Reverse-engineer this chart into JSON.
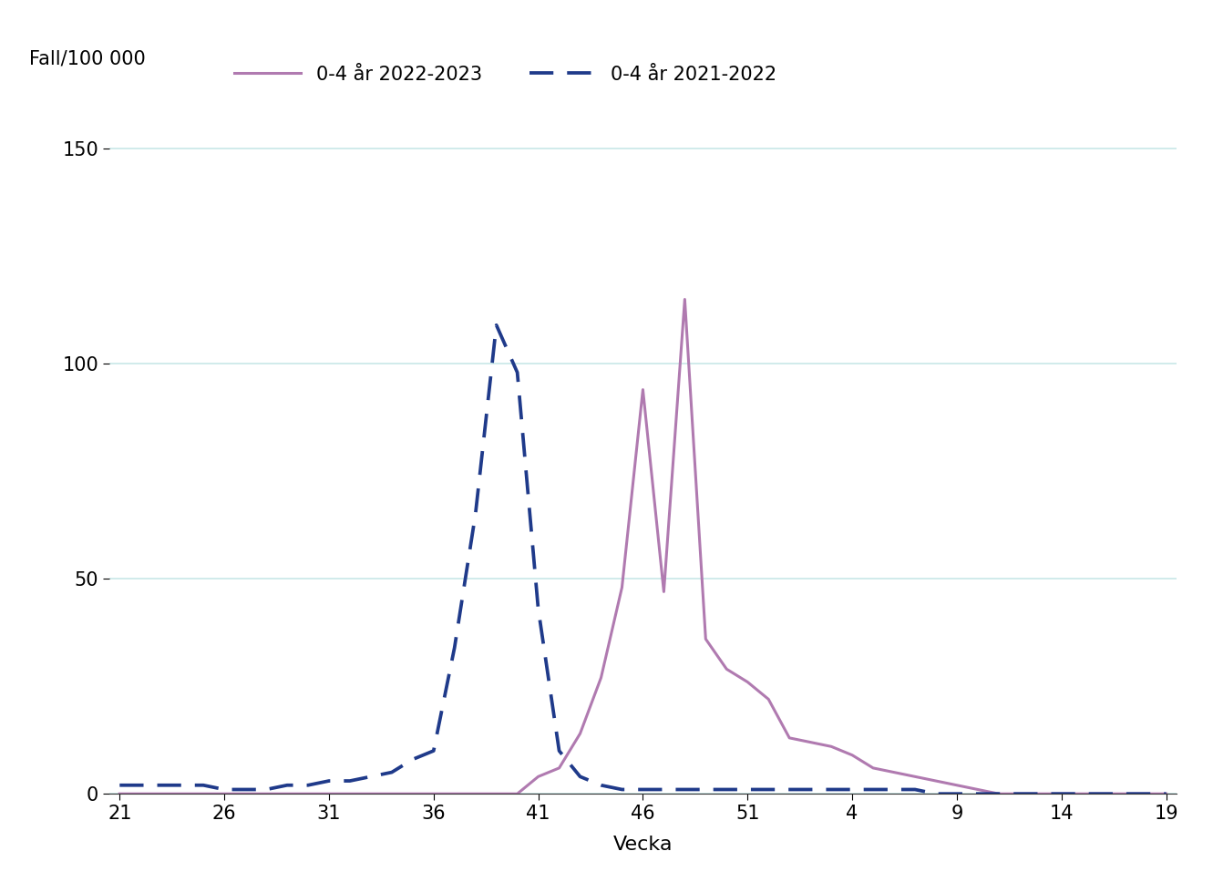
{
  "title_ylabel": "Fall/100 000",
  "xlabel": "Vecka",
  "xtick_labels": [
    "21",
    "26",
    "31",
    "36",
    "41",
    "46",
    "51",
    "4",
    "9",
    "14",
    "19"
  ],
  "xtick_positions": [
    0,
    5,
    10,
    15,
    20,
    25,
    30,
    35,
    40,
    45,
    50
  ],
  "ylim": [
    0,
    160
  ],
  "yticks": [
    0,
    50,
    100,
    150
  ],
  "legend_label_2022_2023": "0-4 år 2022-2023",
  "legend_label_2021_2022": "0-4 år 2021-2022",
  "color_2022_2023": "#b07ab0",
  "color_2021_2022": "#1f3a8a",
  "grid_color": "#c8e8e8",
  "background_color": "#ffffff",
  "font_size": 15,
  "line_width": 2.2,
  "y2223_x": [
    0,
    1,
    2,
    3,
    4,
    5,
    6,
    7,
    8,
    9,
    10,
    11,
    12,
    13,
    14,
    15,
    16,
    17,
    18,
    19,
    20,
    21,
    22,
    23,
    24,
    25,
    26,
    27,
    28,
    29,
    30,
    31,
    32,
    33,
    34,
    35,
    36,
    37,
    38,
    39,
    40,
    41,
    42,
    43,
    44,
    45,
    46,
    47,
    48,
    49,
    50
  ],
  "y2223_y": [
    0,
    0,
    0,
    0,
    0,
    0,
    0,
    0,
    0,
    0,
    0,
    0,
    0,
    0,
    0,
    0,
    0,
    0,
    0,
    0,
    4,
    6,
    14,
    27,
    48,
    94,
    47,
    115,
    36,
    29,
    26,
    22,
    13,
    12,
    11,
    9,
    6,
    5,
    4,
    3,
    2,
    1,
    0,
    0,
    0,
    0,
    0,
    0,
    0,
    0,
    0
  ],
  "y2122_x": [
    0,
    1,
    2,
    3,
    4,
    5,
    6,
    7,
    8,
    9,
    10,
    11,
    12,
    13,
    14,
    15,
    16,
    17,
    18,
    19,
    20,
    21,
    22,
    23,
    24,
    25,
    26,
    27,
    28,
    29,
    30,
    31,
    32,
    33,
    34,
    35,
    36,
    37,
    38,
    39,
    40,
    41,
    42,
    43,
    44,
    45,
    46,
    47,
    48,
    49,
    50
  ],
  "y2122_y": [
    2,
    2,
    2,
    2,
    2,
    1,
    1,
    1,
    2,
    2,
    3,
    3,
    4,
    5,
    8,
    10,
    34,
    65,
    109,
    98,
    43,
    10,
    4,
    2,
    1,
    1,
    1,
    1,
    1,
    1,
    1,
    1,
    1,
    1,
    1,
    1,
    1,
    1,
    1,
    0,
    0,
    0,
    0,
    0,
    0,
    0,
    0,
    0,
    0,
    0,
    0
  ]
}
